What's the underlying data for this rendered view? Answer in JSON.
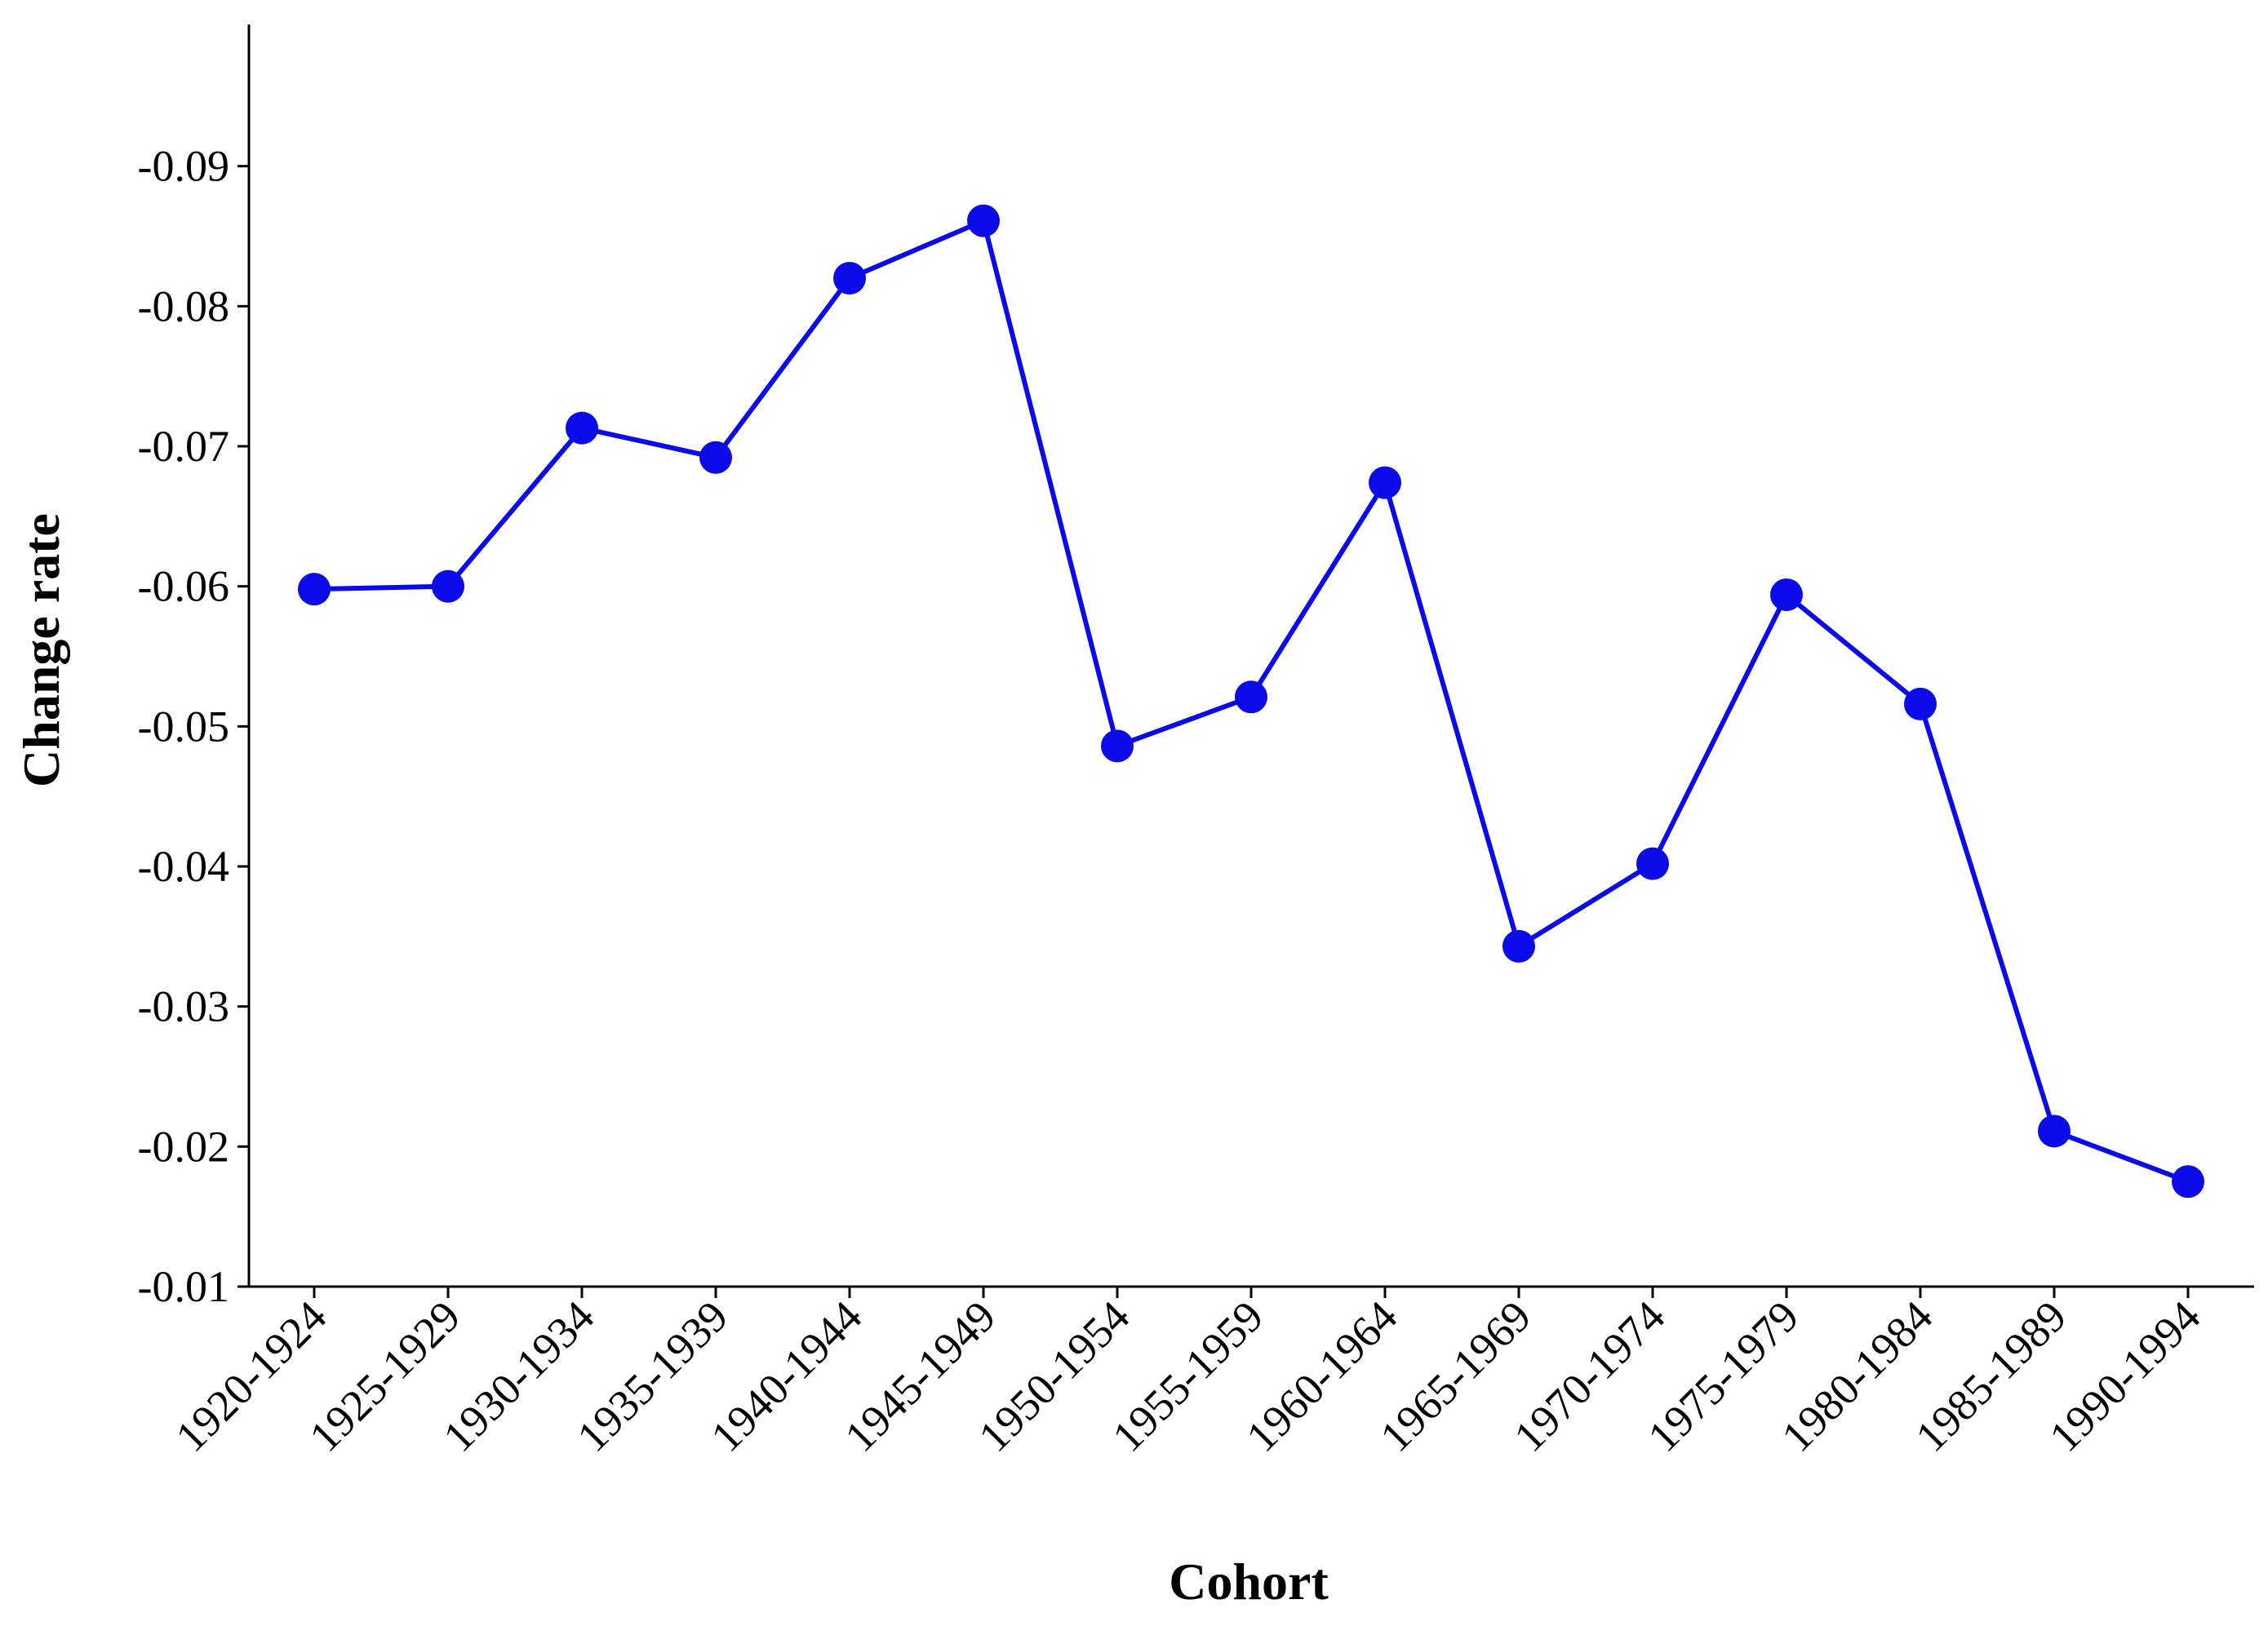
{
  "chart_data": {
    "type": "line",
    "x_label": "Cohort",
    "y_label": "Change rate",
    "categories": [
      "1920-1924",
      "1925-1929",
      "1930-1934",
      "1935-1939",
      "1940-1944",
      "1945-1949",
      "1950-1954",
      "1955-1959",
      "1960-1964",
      "1965-1969",
      "1970-1974",
      "1975-1979",
      "1980-1984",
      "1985-1989",
      "1990-1994"
    ],
    "series": [
      {
        "name": "Change rate",
        "color": "#0b0bea",
        "values": [
          -0.0598,
          -0.06,
          -0.0713,
          -0.0692,
          -0.082,
          -0.0861,
          -0.0486,
          -0.0521,
          -0.0674,
          -0.0343,
          -0.0402,
          -0.0594,
          -0.0516,
          -0.0211,
          -0.0175
        ]
      }
    ],
    "ylim": [
      -0.01,
      -0.1
    ],
    "yticks": [
      -0.01,
      -0.02,
      -0.03,
      -0.04,
      -0.05,
      -0.06,
      -0.07,
      -0.08,
      -0.09
    ],
    "grid": false
  }
}
